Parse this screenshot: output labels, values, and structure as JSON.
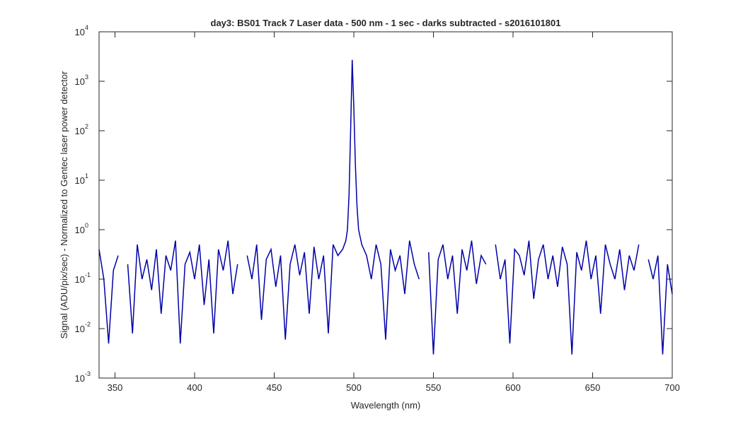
{
  "chart_data": {
    "type": "line",
    "title": "day3: BS01  Track 7 Laser data - 500 nm - 1 sec - darks subtracted - s2016101801",
    "xlabel": "Wavelength (nm)",
    "ylabel": "Signal (ADU/pix/sec) - Normalized to Gentec laser power detector",
    "yscale": "log",
    "grid": false,
    "xlim": [
      340,
      700
    ],
    "xticks": [
      350,
      400,
      450,
      500,
      550,
      600,
      650,
      700
    ],
    "ylim": [
      0.001,
      10000
    ],
    "yticks": [
      {
        "value": 0.001,
        "label": "10",
        "exponent": "-3"
      },
      {
        "value": 0.01,
        "label": "10",
        "exponent": "-2"
      },
      {
        "value": 0.1,
        "label": "10",
        "exponent": "-1"
      },
      {
        "value": 1,
        "label": "10",
        "exponent": "0"
      },
      {
        "value": 10,
        "label": "10",
        "exponent": "1"
      },
      {
        "value": 100,
        "label": "10",
        "exponent": "2"
      },
      {
        "value": 1000,
        "label": "10",
        "exponent": "3"
      },
      {
        "value": 10000,
        "label": "10",
        "exponent": "4"
      }
    ],
    "x": [
      340,
      343,
      346,
      349,
      352,
      355,
      358,
      361,
      364,
      367,
      370,
      373,
      376,
      379,
      382,
      385,
      388,
      391,
      394,
      397,
      400,
      403,
      406,
      409,
      412,
      415,
      418,
      421,
      424,
      427,
      430,
      433,
      436,
      439,
      442,
      445,
      448,
      451,
      454,
      457,
      460,
      463,
      466,
      469,
      472,
      475,
      478,
      481,
      484,
      487,
      490,
      493,
      495,
      496,
      497,
      498,
      499,
      500,
      501,
      502,
      503,
      505,
      508,
      511,
      514,
      517,
      520,
      523,
      526,
      529,
      532,
      535,
      538,
      541,
      544,
      547,
      550,
      553,
      556,
      559,
      562,
      565,
      568,
      571,
      574,
      577,
      580,
      583,
      586,
      589,
      592,
      595,
      598,
      601,
      604,
      607,
      610,
      613,
      616,
      619,
      622,
      625,
      628,
      631,
      634,
      637,
      640,
      643,
      646,
      649,
      652,
      655,
      658,
      661,
      664,
      667,
      670,
      673,
      676,
      679,
      682,
      685,
      688,
      691,
      694,
      697,
      700
    ],
    "series": [
      {
        "name": "signal",
        "color": "#0000a8",
        "values": [
          0.4,
          0.1,
          0.005,
          0.15,
          0.3,
          null,
          0.2,
          0.008,
          0.5,
          0.1,
          0.25,
          0.06,
          0.4,
          0.02,
          0.3,
          0.15,
          0.6,
          0.005,
          0.2,
          0.35,
          0.1,
          0.5,
          0.03,
          0.25,
          0.008,
          0.4,
          0.15,
          0.6,
          0.05,
          0.2,
          null,
          0.3,
          0.1,
          0.5,
          0.015,
          0.25,
          0.4,
          0.07,
          0.3,
          0.006,
          0.2,
          0.5,
          0.12,
          0.35,
          0.02,
          0.45,
          0.1,
          0.3,
          0.008,
          0.5,
          0.3,
          0.4,
          0.6,
          1.0,
          5,
          100,
          2700,
          300,
          20,
          3,
          1,
          0.5,
          0.3,
          0.1,
          0.5,
          0.2,
          0.006,
          0.4,
          0.15,
          0.3,
          0.05,
          0.6,
          0.2,
          0.1,
          null,
          0.35,
          0.003,
          0.25,
          0.5,
          0.1,
          0.3,
          0.02,
          0.4,
          0.15,
          0.6,
          0.08,
          0.3,
          0.2,
          null,
          0.5,
          0.1,
          0.25,
          0.005,
          0.4,
          0.3,
          0.12,
          0.6,
          0.04,
          0.25,
          0.5,
          0.1,
          0.3,
          0.07,
          0.45,
          0.2,
          0.003,
          0.35,
          0.15,
          0.6,
          0.1,
          0.3,
          0.02,
          0.5,
          0.2,
          0.1,
          0.4,
          0.06,
          0.3,
          0.15,
          0.5,
          null,
          0.25,
          0.1,
          0.3,
          0.003,
          0.2,
          0.05
        ]
      }
    ]
  }
}
